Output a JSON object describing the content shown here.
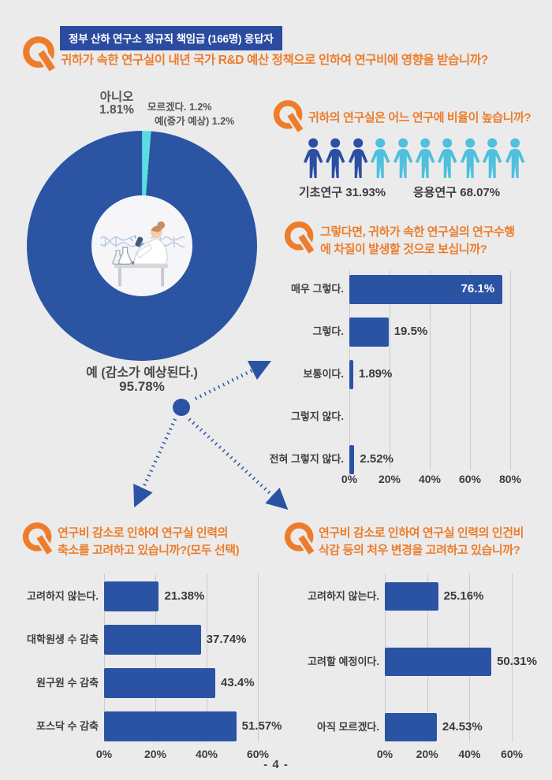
{
  "page": {
    "page_number": "- 4 -",
    "background": "#ebebec"
  },
  "colors": {
    "accent_orange": "#ed7d2a",
    "primary_blue": "#2b53a4",
    "badge_blue": "#2b4ba0",
    "pictogram_dark": "#2b4fa3",
    "pictogram_light": "#4fc0dd",
    "slice_main": "#2b55a3",
    "slice_no": "#5a6ef5",
    "slice_dontknow": "#38b3f5",
    "slice_increase": "#58dede",
    "grid_gray": "#cbcbce",
    "text_gray": "#3c3c40"
  },
  "header": {
    "badge": "정부 산하 연구소 정규직 책임급 (166명) 응답자",
    "question": "귀하가 속한 연구실이 내년 국가 R&D 예산 정책으로 인하여 연구비에 영향을 받습니까?"
  },
  "questions": {
    "ratio": {
      "line1": "귀하의 연구실은 어느 연구에 비율이 높습니까?",
      "line2": ""
    },
    "impact": {
      "line1": "그렇다면, 귀하가 속한 연구실의 연구수행",
      "line2": "에 차질이 발생할 것으로 보십니까?"
    },
    "downsize": {
      "line1": "연구비 감소로 인하여 연구실 인력의",
      "line2": "축소를 고려하고 있습니까?(모두 선택)"
    },
    "salary": {
      "line1": "연구비 감소로 인하여 연구실 인력의 인건비",
      "line2": "삭감 등의 처우 변경을 고려하고 있습니까?"
    }
  },
  "chart_data": [
    {
      "id": "budget_effect",
      "type": "pie",
      "title": "귀하가 속한 연구실이 내년 국가 R&D 예산 정책으로 인하여 연구비에 영향을 받습니까?",
      "labels": [
        "예 (감소가 예상된다.)",
        "아니오",
        "모르겠다.",
        "예(증가 예상)"
      ],
      "values": [
        95.78,
        1.81,
        1.2,
        1.2
      ],
      "colors": [
        "#2b55a3",
        "#5a6ef5",
        "#38b3f5",
        "#58dede"
      ],
      "start_angle_deg": -10.6,
      "callouts": {
        "no_line1": "아니오",
        "no_line2": "1.81%",
        "dontknow": "모르겠다. 1.2%",
        "increase": "예(증가 예상) 1.2%",
        "main_line1": "예 (감소가 예상된다.)",
        "main_line2": "95.78%"
      }
    },
    {
      "id": "research_ratio",
      "type": "pictogram",
      "title": "귀하의 연구실은 어느 연구에 비율이 높습니까?",
      "categories": [
        "기초연구",
        "응용연구"
      ],
      "values": [
        31.93,
        68.07
      ],
      "labels": [
        "기초연구 31.93%",
        "응용연구 68.07%"
      ],
      "icons_total": 10,
      "icons_first_group": 3,
      "colors": [
        "#2b4fa3",
        "#4fc0dd"
      ]
    },
    {
      "id": "disruption",
      "type": "bar",
      "orientation": "horizontal",
      "title": "그렇다면, 귀하가 속한 연구실의 연구수행에 차질이 발생할 것으로 보십니까?",
      "categories": [
        "매우 그렇다.",
        "그렇다.",
        "보통이다.",
        "그렇지 않다.",
        "전혀 그렇지 않다."
      ],
      "values": [
        76.1,
        19.5,
        1.89,
        0,
        2.52
      ],
      "value_labels": [
        "76.1%",
        "19.5%",
        "1.89%",
        "",
        "2.52%"
      ],
      "xlim": [
        0,
        80
      ],
      "tick_labels": [
        "0%",
        "20%",
        "40%",
        "60%",
        "80%"
      ]
    },
    {
      "id": "downsizing",
      "type": "bar",
      "orientation": "horizontal",
      "title": "연구비 감소로 인하여 연구실 인력의 축소를 고려하고 있습니까?(모두 선택)",
      "categories": [
        "고려하지 않는다.",
        "대학원생 수 감축",
        "원구원 수 감축",
        "포스닥 수 감축"
      ],
      "values": [
        21.38,
        37.74,
        43.4,
        51.57
      ],
      "value_labels": [
        "21.38%",
        "37.74%",
        "43.4%",
        "51.57%"
      ],
      "xlim": [
        0,
        60
      ],
      "tick_labels": [
        "0%",
        "20%",
        "40%",
        "60%"
      ]
    },
    {
      "id": "salary_cut",
      "type": "bar",
      "orientation": "horizontal",
      "title": "연구비 감소로 인하여 연구실 인력의 인건비 삭감 등의 처우 변경을 고려하고 있습니까?",
      "categories": [
        "고려하지 않는다.",
        "고려할 예정이다.",
        "아직 모르겠다."
      ],
      "values": [
        25.16,
        50.31,
        24.53
      ],
      "value_labels": [
        "25.16%",
        "50.31%",
        "24.53%"
      ],
      "xlim": [
        0,
        60
      ],
      "tick_labels": [
        "0%",
        "20%",
        "40%",
        "60%"
      ]
    }
  ]
}
